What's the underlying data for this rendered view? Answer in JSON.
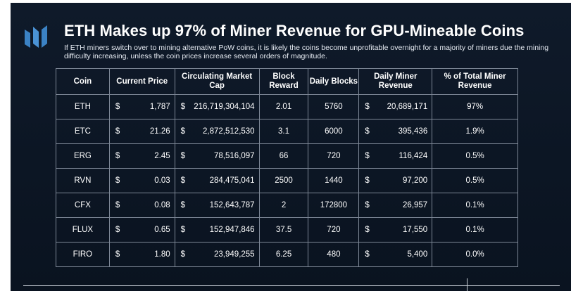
{
  "title": "ETH Makes up 97% of Miner Revenue for GPU-Mineable Coins",
  "subtitle": "If ETH miners switch over to mining alternative PoW coins, it is likely the coins become unprofitable overnight for a majority of miners due the mining difficulty increasing, unless the coin prices increase several orders of magnitude.",
  "colors": {
    "background": "#0f1a2a",
    "logo": "#3b82c4",
    "text": "#ffffff",
    "table_border": "#7d8796"
  },
  "icons": {
    "logo": "brand-logo-icon"
  },
  "table": {
    "headers": [
      "Coin",
      "Current Price",
      "Circulating Market Cap",
      "Block Reward",
      "Daily Blocks",
      "Daily Miner Revenue",
      "% of Total Miner Revenue"
    ],
    "currency_symbol": "$",
    "rows": [
      {
        "coin": "ETH",
        "price": "1,787",
        "market_cap": "216,719,304,104",
        "block_reward": "2.01",
        "daily_blocks": "5760",
        "revenue": "20,689,171",
        "share": "97%"
      },
      {
        "coin": "ETC",
        "price": "21.26",
        "market_cap": "2,872,512,530",
        "block_reward": "3.1",
        "daily_blocks": "6000",
        "revenue": "395,436",
        "share": "1.9%"
      },
      {
        "coin": "ERG",
        "price": "2.45",
        "market_cap": "78,516,097",
        "block_reward": "66",
        "daily_blocks": "720",
        "revenue": "116,424",
        "share": "0.5%"
      },
      {
        "coin": "RVN",
        "price": "0.03",
        "market_cap": "284,475,041",
        "block_reward": "2500",
        "daily_blocks": "1440",
        "revenue": "97,200",
        "share": "0.5%"
      },
      {
        "coin": "CFX",
        "price": "0.08",
        "market_cap": "152,643,787",
        "block_reward": "2",
        "daily_blocks": "172800",
        "revenue": "26,957",
        "share": "0.1%"
      },
      {
        "coin": "FLUX",
        "price": "0.65",
        "market_cap": "152,947,846",
        "block_reward": "37.5",
        "daily_blocks": "720",
        "revenue": "17,550",
        "share": "0.1%"
      },
      {
        "coin": "FIRO",
        "price": "1.80",
        "market_cap": "23,949,255",
        "block_reward": "6.25",
        "daily_blocks": "480",
        "revenue": "5,400",
        "share": "0.0%"
      }
    ]
  }
}
